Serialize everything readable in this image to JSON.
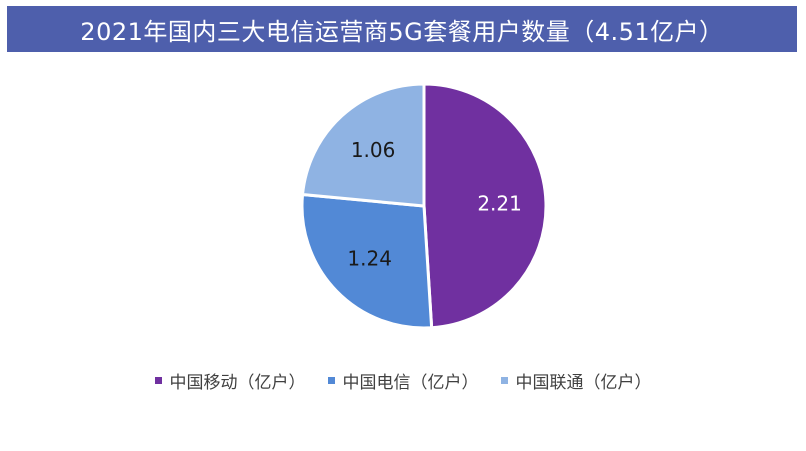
{
  "title": "2021年国内三大电信运营商5G套餐用户数量（4.51亿户）",
  "colors": {
    "title_bg": "#4e5fac",
    "series": [
      "#7030a0",
      "#5289d6",
      "#8fb3e3"
    ],
    "label_text": [
      "#ffffff",
      "#1a1a1a",
      "#1a1a1a"
    ]
  },
  "chart_data": {
    "type": "pie",
    "title": "2021年国内三大电信运营商5G套餐用户数量（4.51亿户）",
    "total": 4.51,
    "slices": [
      {
        "label": "中国移动（亿户）",
        "value": 2.21,
        "display": "2.21"
      },
      {
        "label": "中国电信（亿户）",
        "value": 1.24,
        "display": "1.24"
      },
      {
        "label": "中国联通（亿户）",
        "value": 1.06,
        "display": "1.06"
      }
    ],
    "legend_position": "bottom"
  }
}
